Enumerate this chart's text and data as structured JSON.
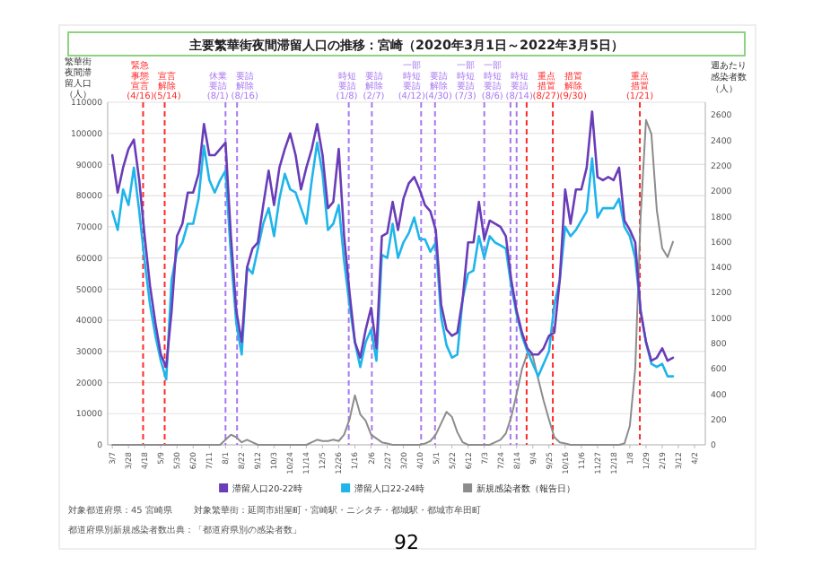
{
  "chart_data": {
    "type": "line",
    "title": "主要繁華街夜間滞留人口の推移：宮崎（2020年3月1日～2022年3月5日）",
    "ylabel": "繁華街夜間滞留人口（人）",
    "y2label": "週あたり感染者数（人）",
    "x": [
      "2020-03-07",
      "2020-03-14",
      "2020-03-21",
      "2020-03-28",
      "2020-04-04",
      "2020-04-11",
      "2020-04-18",
      "2020-04-25",
      "2020-05-02",
      "2020-05-09",
      "2020-05-16",
      "2020-05-23",
      "2020-05-30",
      "2020-06-06",
      "2020-06-13",
      "2020-06-20",
      "2020-06-27",
      "2020-07-04",
      "2020-07-11",
      "2020-07-18",
      "2020-07-25",
      "2020-08-01",
      "2020-08-08",
      "2020-08-15",
      "2020-08-22",
      "2020-08-29",
      "2020-09-05",
      "2020-09-12",
      "2020-09-19",
      "2020-09-26",
      "2020-10-03",
      "2020-10-10",
      "2020-10-17",
      "2020-10-24",
      "2020-10-31",
      "2020-11-07",
      "2020-11-14",
      "2020-11-21",
      "2020-11-28",
      "2020-12-05",
      "2020-12-12",
      "2020-12-19",
      "2020-12-26",
      "2021-01-02",
      "2021-01-09",
      "2021-01-16",
      "2021-01-23",
      "2021-01-30",
      "2021-02-06",
      "2021-02-13",
      "2021-02-20",
      "2021-02-27",
      "2021-03-06",
      "2021-03-13",
      "2021-03-20",
      "2021-03-27",
      "2021-04-03",
      "2021-04-10",
      "2021-04-17",
      "2021-04-24",
      "2021-05-01",
      "2021-05-08",
      "2021-05-15",
      "2021-05-22",
      "2021-05-29",
      "2021-06-05",
      "2021-06-12",
      "2021-06-19",
      "2021-06-26",
      "2021-07-03",
      "2021-07-10",
      "2021-07-17",
      "2021-07-24",
      "2021-07-31",
      "2021-08-07",
      "2021-08-14",
      "2021-08-21",
      "2021-08-28",
      "2021-09-04",
      "2021-09-11",
      "2021-09-18",
      "2021-09-25",
      "2021-10-02",
      "2021-10-09",
      "2021-10-16",
      "2021-10-23",
      "2021-10-30",
      "2021-11-06",
      "2021-11-13",
      "2021-11-20",
      "2021-11-27",
      "2021-12-04",
      "2021-12-11",
      "2021-12-18",
      "2021-12-25",
      "2022-01-01",
      "2022-01-08",
      "2022-01-15",
      "2022-01-22",
      "2022-01-29",
      "2022-02-05",
      "2022-02-12",
      "2022-02-19",
      "2022-02-26",
      "2022-03-05"
    ],
    "series": [
      {
        "name": "滞留人口20-22時",
        "color": "#6a3db8",
        "values": [
          93000,
          81000,
          89000,
          95000,
          98000,
          85000,
          67000,
          51000,
          39000,
          29000,
          25000,
          43000,
          67000,
          71000,
          81000,
          81000,
          87000,
          103000,
          93000,
          93000,
          95000,
          97000,
          67000,
          43000,
          33000,
          57000,
          63000,
          65000,
          77000,
          88000,
          77000,
          89000,
          95000,
          100000,
          93000,
          82000,
          89000,
          95000,
          103000,
          93000,
          76000,
          78000,
          95000,
          67000,
          49000,
          33000,
          28000,
          37000,
          44000,
          31000,
          67000,
          68000,
          78000,
          69000,
          79000,
          84000,
          86000,
          82000,
          77000,
          75000,
          69000,
          45000,
          37000,
          35000,
          36000,
          47000,
          65000,
          65000,
          78000,
          66000,
          72000,
          71000,
          70000,
          67000,
          53000,
          43000,
          36000,
          31000,
          29000,
          29000,
          31000,
          35000,
          36000,
          53000,
          82000,
          71000,
          82000,
          82000,
          89000,
          107000,
          86000,
          85000,
          86000,
          85000,
          89000,
          72000,
          69000,
          65000,
          43000,
          33000,
          27000,
          28000,
          31000,
          27000,
          28000
        ]
      },
      {
        "name": "滞留人口22-24時",
        "color": "#1fb5ea",
        "values": [
          75000,
          69000,
          82000,
          77000,
          89000,
          75000,
          59000,
          45000,
          35000,
          27000,
          21000,
          53000,
          62000,
          65000,
          71000,
          71000,
          79000,
          96000,
          85000,
          81000,
          85000,
          88000,
          61000,
          39000,
          29000,
          57000,
          55000,
          63000,
          71000,
          76000,
          67000,
          79000,
          87000,
          82000,
          81000,
          76000,
          71000,
          85000,
          97000,
          87000,
          69000,
          71000,
          77000,
          59000,
          45000,
          33000,
          25000,
          33000,
          37000,
          27000,
          61000,
          60000,
          71000,
          60000,
          65000,
          68000,
          73000,
          66000,
          66000,
          62000,
          65000,
          41000,
          32000,
          28000,
          29000,
          47000,
          55000,
          56000,
          67000,
          60000,
          67000,
          65000,
          64000,
          63000,
          51000,
          42000,
          35000,
          30000,
          26000,
          22000,
          26000,
          30000,
          45000,
          53000,
          70000,
          67000,
          69000,
          72000,
          75000,
          92000,
          73000,
          76000,
          76000,
          76000,
          79000,
          70000,
          67000,
          60000,
          43000,
          33000,
          26000,
          25000,
          26000,
          22000,
          22000
        ]
      },
      {
        "name": "新規感染者数（報告日）",
        "color": "#8c8c8c",
        "axis": "y2",
        "values": [
          0,
          0,
          0,
          0,
          0,
          0,
          0,
          0,
          0,
          0,
          0,
          0,
          0,
          0,
          0,
          0,
          0,
          0,
          0,
          0,
          0,
          40,
          80,
          60,
          20,
          40,
          20,
          0,
          0,
          0,
          0,
          0,
          0,
          0,
          0,
          0,
          0,
          20,
          40,
          30,
          30,
          40,
          30,
          80,
          200,
          390,
          240,
          190,
          80,
          50,
          20,
          10,
          0,
          0,
          0,
          0,
          0,
          0,
          10,
          30,
          80,
          170,
          260,
          220,
          100,
          20,
          0,
          0,
          0,
          0,
          0,
          20,
          40,
          90,
          220,
          400,
          600,
          720,
          700,
          520,
          350,
          200,
          60,
          20,
          10,
          0,
          0,
          0,
          0,
          0,
          0,
          0,
          0,
          0,
          0,
          10,
          150,
          600,
          1800,
          2560,
          2450,
          1850,
          1550,
          1480,
          1600
        ]
      }
    ],
    "xlim": [
      "2020-03-01",
      "2022-04-16"
    ],
    "xticks": [
      {
        "value": "2020-03-07",
        "label": "3/7"
      },
      {
        "value": "2020-03-28",
        "label": "3/28"
      },
      {
        "value": "2020-04-18",
        "label": "4/18"
      },
      {
        "value": "2020-05-09",
        "label": "5/9"
      },
      {
        "value": "2020-05-30",
        "label": "5/30"
      },
      {
        "value": "2020-06-20",
        "label": "6/20"
      },
      {
        "value": "2020-07-11",
        "label": "7/11"
      },
      {
        "value": "2020-08-01",
        "label": "8/1"
      },
      {
        "value": "2020-08-22",
        "label": "8/22"
      },
      {
        "value": "2020-09-12",
        "label": "9/12"
      },
      {
        "value": "2020-10-03",
        "label": "10/3"
      },
      {
        "value": "2020-10-24",
        "label": "10/24"
      },
      {
        "value": "2020-11-14",
        "label": "11/14"
      },
      {
        "value": "2020-12-05",
        "label": "12/5"
      },
      {
        "value": "2020-12-26",
        "label": "12/26"
      },
      {
        "value": "2021-01-16",
        "label": "1/16"
      },
      {
        "value": "2021-02-06",
        "label": "2/6"
      },
      {
        "value": "2021-02-27",
        "label": "2/27"
      },
      {
        "value": "2021-03-20",
        "label": "3/20"
      },
      {
        "value": "2021-04-10",
        "label": "4/10"
      },
      {
        "value": "2021-05-01",
        "label": "5/1"
      },
      {
        "value": "2021-05-22",
        "label": "5/22"
      },
      {
        "value": "2021-06-12",
        "label": "6/12"
      },
      {
        "value": "2021-07-03",
        "label": "7/3"
      },
      {
        "value": "2021-07-24",
        "label": "7/24"
      },
      {
        "value": "2021-08-14",
        "label": "8/14"
      },
      {
        "value": "2021-09-04",
        "label": "9/4"
      },
      {
        "value": "2021-09-25",
        "label": "9/25"
      },
      {
        "value": "2021-10-16",
        "label": "10/16"
      },
      {
        "value": "2021-11-06",
        "label": "11/6"
      },
      {
        "value": "2021-11-27",
        "label": "11/27"
      },
      {
        "value": "2021-12-18",
        "label": "12/18"
      },
      {
        "value": "2022-01-08",
        "label": "1/8"
      },
      {
        "value": "2022-01-29",
        "label": "1/29"
      },
      {
        "value": "2022-02-19",
        "label": "2/19"
      },
      {
        "value": "2022-03-12",
        "label": "3/12"
      },
      {
        "value": "2022-04-02",
        "label": "4/2"
      }
    ],
    "ylim": [
      0,
      110000
    ],
    "yticks": [
      0,
      10000,
      20000,
      30000,
      40000,
      50000,
      60000,
      70000,
      80000,
      90000,
      100000,
      110000
    ],
    "y2lim": [
      0,
      2700
    ],
    "y2ticks": [
      0,
      200,
      400,
      600,
      800,
      1000,
      1200,
      1400,
      1600,
      1800,
      2000,
      2200,
      2400,
      2600
    ],
    "ref_lines": [
      {
        "axis": "x",
        "value": "2020-04-16",
        "label": "緊急事態宣言(4/16)",
        "color": "#ff2a2a",
        "line_style": "dashed"
      },
      {
        "axis": "x",
        "value": "2020-05-14",
        "label": "宣言解除(5/14)",
        "color": "#ff2a2a",
        "line_style": "dashed"
      },
      {
        "axis": "x",
        "value": "2020-08-01",
        "label": "休業要請(8/1)",
        "color": "#a878f0",
        "line_style": "dashed"
      },
      {
        "axis": "x",
        "value": "2020-08-16",
        "label": "要請解除(8/16)",
        "color": "#a878f0",
        "line_style": "dashed"
      },
      {
        "axis": "x",
        "value": "2021-01-08",
        "label": "時短要請(1/8)",
        "color": "#a878f0",
        "line_style": "dashed"
      },
      {
        "axis": "x",
        "value": "2021-02-07",
        "label": "要請解除(2/7)",
        "color": "#a878f0",
        "line_style": "dashed"
      },
      {
        "axis": "x",
        "value": "2021-04-12",
        "label": "一部時短要請(4/12)",
        "color": "#a878f0",
        "line_style": "dashed"
      },
      {
        "axis": "x",
        "value": "2021-04-30",
        "label": "要請解除(4/30)",
        "color": "#a878f0",
        "line_style": "dashed"
      },
      {
        "axis": "x",
        "value": "2021-07-03",
        "label": "一部時短要請(7/3)",
        "color": "#a878f0",
        "line_style": "dashed"
      },
      {
        "axis": "x",
        "value": "2021-08-06",
        "label": "一部時短要請(8/6)",
        "color": "#a878f0",
        "line_style": "dashed"
      },
      {
        "axis": "x",
        "value": "2021-08-14",
        "label": "時短要請(8/14)",
        "color": "#a878f0",
        "line_style": "dashed"
      },
      {
        "axis": "x",
        "value": "2021-08-27",
        "label": "重点措置(8/27)",
        "color": "#ff2a2a",
        "line_style": "dashed"
      },
      {
        "axis": "x",
        "value": "2021-09-30",
        "label": "措置解除(9/30)",
        "color": "#ff2a2a",
        "line_style": "dashed"
      },
      {
        "axis": "x",
        "value": "2022-01-21",
        "label": "重点措置(1/21)",
        "color": "#ff2a2a",
        "line_style": "dashed"
      }
    ],
    "grid": "y",
    "legend": "bottom",
    "marker": "none",
    "line_style": "solid",
    "annotations": [
      "対象都道府県：45 宮崎県",
      "対象繁華街：延岡市紺屋町・宮崎駅・ニシタチ・都城駅・都城市牟田町",
      "都道府県別新規感染者数出典：「都道府県別の感染者数」",
      "92"
    ]
  }
}
